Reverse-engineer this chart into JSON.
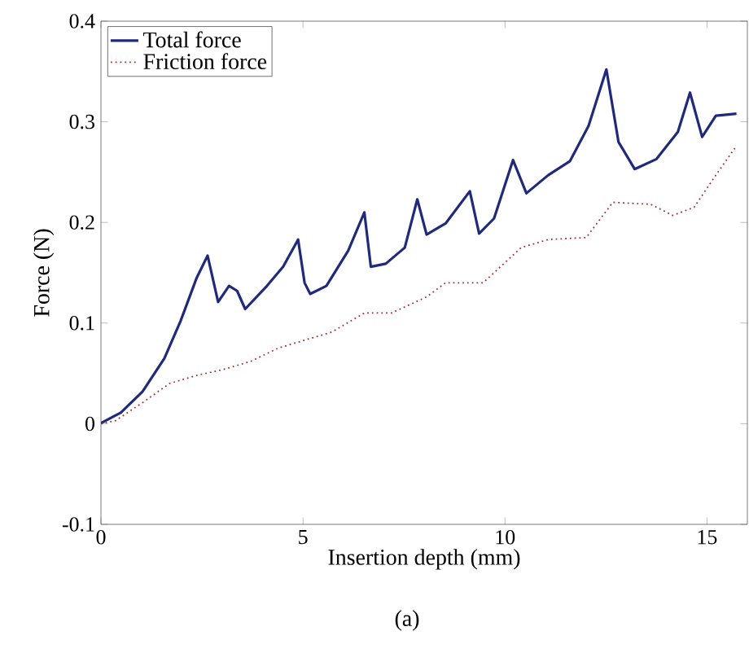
{
  "chart_data": {
    "type": "line",
    "xlabel": "Insertion depth (mm)",
    "ylabel": "Force (N)",
    "annotations": [
      "(a)"
    ],
    "xlim": [
      0,
      16
    ],
    "ylim": [
      -0.1,
      0.4
    ],
    "xticks": [
      0,
      5,
      10,
      15
    ],
    "yticks": [
      -0.1,
      0,
      0.1,
      0.2,
      0.3,
      0.4
    ],
    "legend": "top left",
    "grid": false,
    "marker": "none",
    "series": [
      {
        "name": "Total force",
        "color": "#1f2a7a",
        "line_style": "solid",
        "x": [
          0,
          0.02,
          0.49,
          1.03,
          1.57,
          1.97,
          2.37,
          2.64,
          2.9,
          3.17,
          3.37,
          3.57,
          4.11,
          4.51,
          4.88,
          5.04,
          5.18,
          5.58,
          6.12,
          6.52,
          6.68,
          7.05,
          7.52,
          7.83,
          8.06,
          8.53,
          9.13,
          9.36,
          9.73,
          10.2,
          10.53,
          11.07,
          11.61,
          12.07,
          12.51,
          12.81,
          13.21,
          13.75,
          14.28,
          14.58,
          14.88,
          15.22,
          15.73
        ],
        "values": [
          0,
          0.001,
          0.011,
          0.032,
          0.065,
          0.102,
          0.145,
          0.167,
          0.121,
          0.137,
          0.132,
          0.114,
          0.137,
          0.156,
          0.183,
          0.14,
          0.129,
          0.137,
          0.172,
          0.21,
          0.156,
          0.159,
          0.175,
          0.223,
          0.188,
          0.199,
          0.231,
          0.189,
          0.204,
          0.262,
          0.229,
          0.247,
          0.261,
          0.296,
          0.352,
          0.28,
          0.253,
          0.263,
          0.29,
          0.329,
          0.285,
          0.306,
          0.308
        ]
      },
      {
        "name": "Friction force",
        "color": "#a03030",
        "line_style": "dotted",
        "x": [
          0,
          0.36,
          1.03,
          1.7,
          2.37,
          3.04,
          3.71,
          4.38,
          5.04,
          5.71,
          6.52,
          7.19,
          8.06,
          8.53,
          9.46,
          10.4,
          11.07,
          12.01,
          12.67,
          13.61,
          14.15,
          14.68,
          15.22,
          15.71
        ],
        "values": [
          0,
          0.003,
          0.021,
          0.04,
          0.048,
          0.054,
          0.062,
          0.075,
          0.083,
          0.091,
          0.11,
          0.11,
          0.126,
          0.14,
          0.14,
          0.175,
          0.183,
          0.185,
          0.22,
          0.218,
          0.207,
          0.215,
          0.247,
          0.275
        ]
      }
    ]
  }
}
